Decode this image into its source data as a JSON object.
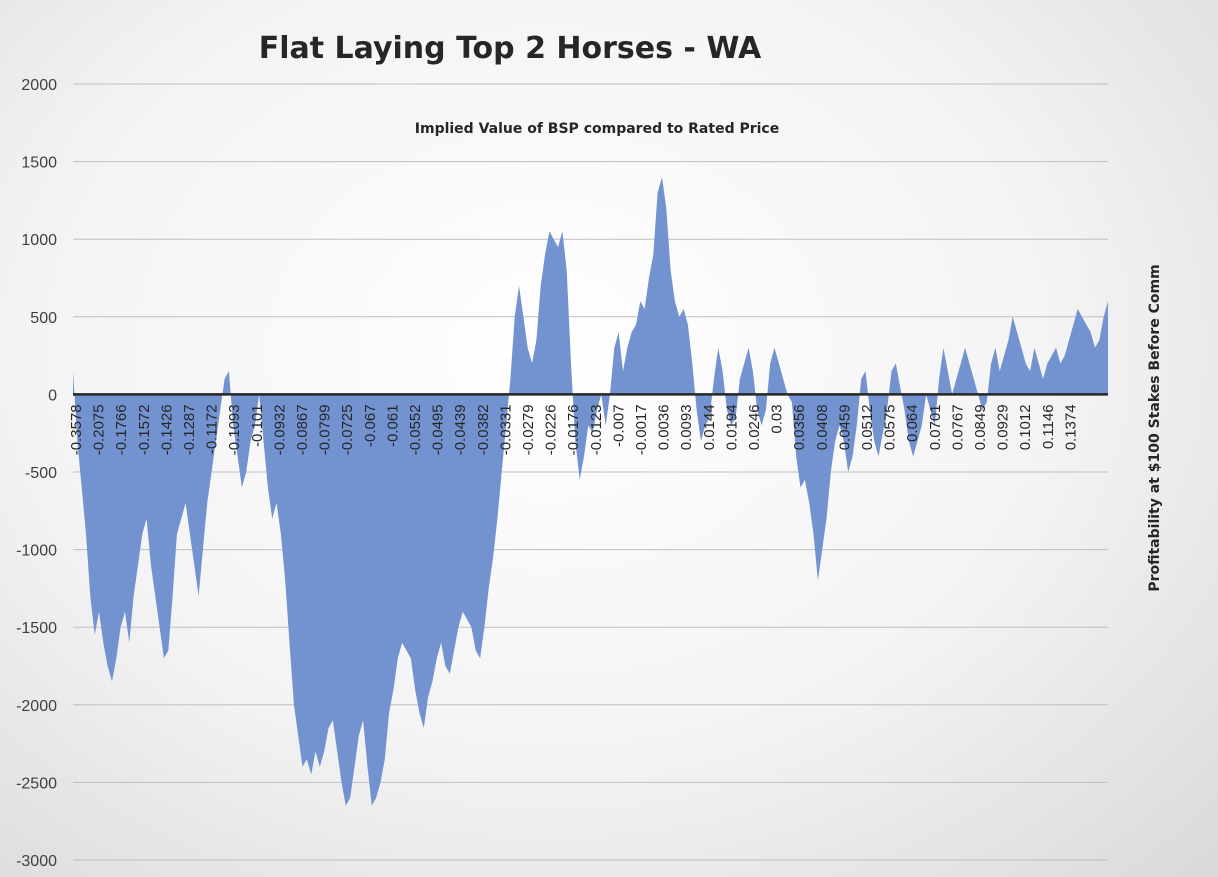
{
  "chart_data": {
    "type": "area",
    "title": "Flat Laying Top 2 Horses - WA",
    "subtitle": "Implied Value of BSP compared to Rated Price",
    "ylabel": "Profitability at $100 Stakes Before Comm",
    "xlabel": "",
    "ylim": [
      -3000,
      2000
    ],
    "yticks": [
      2000,
      1500,
      1000,
      500,
      0,
      -500,
      -1000,
      -1500,
      -2000,
      -2500,
      -3000
    ],
    "grid": true,
    "legend": "none",
    "colors": {
      "fill": "#7393d0",
      "gridline": "#bfbfbf",
      "zeroline": "#262626"
    },
    "x_tick_labels": [
      "-0.3578",
      "-0.2075",
      "-0.1766",
      "-0.1572",
      "-0.1426",
      "-0.1287",
      "-0.1172",
      "-0.1093",
      "-0.101",
      "-0.0932",
      "-0.0867",
      "-0.0799",
      "-0.0725",
      "-0.067",
      "-0.061",
      "-0.0552",
      "-0.0495",
      "-0.0439",
      "-0.0382",
      "-0.0331",
      "-0.0279",
      "-0.0226",
      "-0.0176",
      "-0.0123",
      "-0.007",
      "-0.0017",
      "0.0036",
      "0.0093",
      "0.0144",
      "0.0194",
      "0.0246",
      "0.03",
      "0.0356",
      "0.0408",
      "0.0459",
      "0.0512",
      "0.0575",
      "0.064",
      "0.0701",
      "0.0767",
      "0.0849",
      "0.0929",
      "0.1012",
      "0.1146",
      "0.1374"
    ],
    "series": [
      {
        "values": [
          150,
          -300,
          -600,
          -900,
          -1300,
          -1550,
          -1400,
          -1600,
          -1750,
          -1850,
          -1700,
          -1500,
          -1400,
          -1600,
          -1300,
          -1100,
          -900,
          -800,
          -1100,
          -1300,
          -1500,
          -1700,
          -1650,
          -1300,
          -900,
          -800,
          -700,
          -900,
          -1100,
          -1300,
          -1000,
          -700,
          -500,
          -300,
          -100,
          100,
          150,
          -200,
          -400,
          -600,
          -500,
          -300,
          -200,
          0,
          -300,
          -600,
          -800,
          -700,
          -900,
          -1200,
          -1600,
          -2000,
          -2200,
          -2400,
          -2350,
          -2450,
          -2300,
          -2400,
          -2300,
          -2150,
          -2100,
          -2300,
          -2500,
          -2650,
          -2600,
          -2400,
          -2200,
          -2100,
          -2400,
          -2650,
          -2600,
          -2500,
          -2350,
          -2050,
          -1900,
          -1700,
          -1600,
          -1650,
          -1700,
          -1900,
          -2050,
          -2150,
          -1950,
          -1850,
          -1700,
          -1600,
          -1750,
          -1800,
          -1650,
          -1500,
          -1400,
          -1450,
          -1500,
          -1650,
          -1700,
          -1500,
          -1250,
          -1050,
          -800,
          -500,
          -200,
          100,
          500,
          700,
          500,
          300,
          200,
          350,
          700,
          900,
          1050,
          1000,
          950,
          1050,
          800,
          200,
          -300,
          -550,
          -400,
          -200,
          -250,
          -100,
          0,
          -200,
          0,
          300,
          400,
          150,
          300,
          400,
          450,
          600,
          550,
          750,
          900,
          1300,
          1400,
          1200,
          800,
          600,
          500,
          550,
          450,
          200,
          -100,
          -300,
          -200,
          -150,
          100,
          300,
          150,
          -100,
          -200,
          -150,
          100,
          200,
          300,
          150,
          -100,
          -200,
          -100,
          200,
          300,
          200,
          100,
          0,
          -50,
          -400,
          -600,
          -550,
          -700,
          -900,
          -1200,
          -1000,
          -800,
          -500,
          -300,
          -200,
          -300,
          -500,
          -400,
          -200,
          100,
          150,
          -100,
          -300,
          -400,
          -250,
          -100,
          150,
          200,
          50,
          -100,
          -300,
          -400,
          -300,
          -200,
          0,
          -100,
          -200,
          100,
          300,
          150,
          0,
          100,
          200,
          300,
          200,
          100,
          0,
          -100,
          -50,
          200,
          300,
          150,
          250,
          350,
          500,
          400,
          300,
          200,
          150,
          300,
          200,
          100,
          200,
          250,
          300,
          200,
          250,
          350,
          450,
          550,
          500,
          450,
          400,
          300,
          350,
          500,
          600
        ]
      }
    ]
  }
}
